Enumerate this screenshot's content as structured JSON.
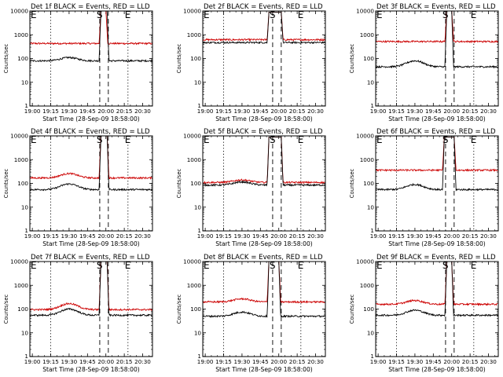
{
  "figure": {
    "background": "#ffffff",
    "colors": {
      "events": "#000000",
      "lld": "#cc0000"
    }
  },
  "chart_data": [
    {
      "type": "line",
      "title": "Det 1f BLACK = Events, RED = LLD",
      "xlabel": "Start Time (28-Sep-09 18:58:00)",
      "ylabel": "Counts/sec",
      "y_scale": "log",
      "ylim": [
        1,
        10000
      ],
      "y_ticks": [
        "1",
        "10",
        "100",
        "1000",
        "10000"
      ],
      "x_ticks": [
        "19:00",
        "19:15",
        "19:30",
        "19:45",
        "20:00",
        "20:15",
        "20:30"
      ],
      "xlim": [
        "18:58",
        "20:38"
      ],
      "markers": [
        {
          "label": "E",
          "x": "18:58",
          "style": "dotted"
        },
        {
          "label": "E",
          "x": "20:18",
          "style": "dotted"
        },
        {
          "label": "S",
          "x": "19:55",
          "style": "dashed"
        },
        {
          "label": "",
          "x": "20:02",
          "style": "dashed"
        }
      ],
      "series": [
        {
          "name": "LLD",
          "color": "#cc0000",
          "baseline": 430,
          "peak_start": "19:56",
          "peak_end": "20:00",
          "peak": 12000
        },
        {
          "name": "Events",
          "color": "#000000",
          "baseline": 80,
          "bump_center": "19:30",
          "bump": 110,
          "peak_start": "19:56",
          "peak_end": "20:01",
          "peak": 12000
        }
      ]
    },
    {
      "type": "line",
      "title": "Det 2f BLACK = Events, RED = LLD",
      "xlabel": "Start Time (28-Sep-09 18:58:00)",
      "ylabel": "Counts/sec",
      "y_scale": "log",
      "ylim": [
        1,
        10000
      ],
      "y_ticks": [
        "1",
        "10",
        "100",
        "1000",
        "10000"
      ],
      "x_ticks": [
        "19:00",
        "19:15",
        "19:30",
        "19:45",
        "20:00",
        "20:15",
        "20:30"
      ],
      "xlim": [
        "18:58",
        "20:38"
      ],
      "markers": [
        {
          "label": "E",
          "x": "18:58",
          "style": "dotted"
        },
        {
          "label": "E",
          "x": "20:18",
          "style": "dotted"
        },
        {
          "label": "S",
          "x": "19:55",
          "style": "dashed"
        },
        {
          "label": "",
          "x": "20:02",
          "style": "dashed"
        }
      ],
      "series": [
        {
          "name": "LLD",
          "color": "#cc0000",
          "baseline": 620,
          "peak_start": "19:52",
          "peak_end": "20:02",
          "peak": 9000
        },
        {
          "name": "Events",
          "color": "#000000",
          "baseline": 470,
          "peak_start": "19:52",
          "peak_end": "20:02",
          "peak": 9000
        }
      ]
    },
    {
      "type": "line",
      "title": "Det 3f BLACK = Events, RED = LLD",
      "xlabel": "Start Time (28-Sep-09 18:58:00)",
      "ylabel": "Counts/sec",
      "y_scale": "log",
      "ylim": [
        1,
        10000
      ],
      "y_ticks": [
        "1",
        "10",
        "100",
        "1000",
        "10000"
      ],
      "x_ticks": [
        "19:00",
        "19:15",
        "19:30",
        "19:45",
        "20:00",
        "20:15",
        "20:30"
      ],
      "xlim": [
        "18:58",
        "20:38"
      ],
      "markers": [
        {
          "label": "E",
          "x": "18:58",
          "style": "dotted"
        },
        {
          "label": "E",
          "x": "20:18",
          "style": "dotted"
        },
        {
          "label": "S",
          "x": "19:55",
          "style": "dashed"
        },
        {
          "label": "",
          "x": "20:02",
          "style": "dashed"
        }
      ],
      "series": [
        {
          "name": "LLD",
          "color": "#cc0000",
          "baseline": 520,
          "peak_start": "19:56",
          "peak_end": "20:00",
          "peak": 12000
        },
        {
          "name": "Events",
          "color": "#000000",
          "baseline": 45,
          "bump_center": "19:30",
          "bump": 80,
          "peak_start": "19:56",
          "peak_end": "20:00",
          "peak": 12000
        }
      ]
    },
    {
      "type": "line",
      "title": "Det 4f BLACK = Events, RED = LLD",
      "xlabel": "Start Time (28-Sep-09 18:58:00)",
      "ylabel": "Counts/sec",
      "y_scale": "log",
      "ylim": [
        1,
        10000
      ],
      "y_ticks": [
        "1",
        "10",
        "100",
        "1000",
        "10000"
      ],
      "x_ticks": [
        "19:00",
        "19:15",
        "19:30",
        "19:45",
        "20:00",
        "20:15",
        "20:30"
      ],
      "xlim": [
        "18:58",
        "20:38"
      ],
      "markers": [
        {
          "label": "E",
          "x": "18:58",
          "style": "dotted"
        },
        {
          "label": "E",
          "x": "20:18",
          "style": "dotted"
        },
        {
          "label": "S",
          "x": "19:55",
          "style": "dashed"
        },
        {
          "label": "",
          "x": "20:02",
          "style": "dashed"
        }
      ],
      "series": [
        {
          "name": "LLD",
          "color": "#cc0000",
          "baseline": 170,
          "bump_center": "19:30",
          "bump": 260,
          "peak_start": "19:56",
          "peak_end": "20:01",
          "peak": 12000
        },
        {
          "name": "Events",
          "color": "#000000",
          "baseline": 55,
          "bump_center": "19:30",
          "bump": 95,
          "peak_start": "19:56",
          "peak_end": "20:01",
          "peak": 12000
        }
      ]
    },
    {
      "type": "line",
      "title": "Det 5f BLACK = Events, RED = LLD",
      "xlabel": "Start Time (28-Sep-09 18:58:00)",
      "ylabel": "Counts/sec",
      "y_scale": "log",
      "ylim": [
        1,
        10000
      ],
      "y_ticks": [
        "1",
        "10",
        "100",
        "1000",
        "10000"
      ],
      "x_ticks": [
        "19:00",
        "19:15",
        "19:30",
        "19:45",
        "20:00",
        "20:15",
        "20:30"
      ],
      "xlim": [
        "18:58",
        "20:38"
      ],
      "markers": [
        {
          "label": "E",
          "x": "18:58",
          "style": "dotted"
        },
        {
          "label": "E",
          "x": "20:18",
          "style": "dotted"
        },
        {
          "label": "S",
          "x": "19:55",
          "style": "dashed"
        },
        {
          "label": "",
          "x": "20:02",
          "style": "dashed"
        }
      ],
      "series": [
        {
          "name": "LLD",
          "color": "#cc0000",
          "baseline": 110,
          "bump_center": "19:30",
          "bump": 140,
          "peak_start": "19:52",
          "peak_end": "20:02",
          "peak": 9000
        },
        {
          "name": "Events",
          "color": "#000000",
          "baseline": 85,
          "bump_center": "19:30",
          "bump": 115,
          "peak_start": "19:52",
          "peak_end": "20:02",
          "peak": 9000
        }
      ]
    },
    {
      "type": "line",
      "title": "Det 6f BLACK = Events, RED = LLD",
      "xlabel": "Start Time (28-Sep-09 18:58:00)",
      "ylabel": "Counts/sec",
      "y_scale": "log",
      "ylim": [
        1,
        10000
      ],
      "y_ticks": [
        "1",
        "10",
        "100",
        "1000",
        "10000"
      ],
      "x_ticks": [
        "19:00",
        "19:15",
        "19:30",
        "19:45",
        "20:00",
        "20:15",
        "20:30"
      ],
      "xlim": [
        "18:58",
        "20:38"
      ],
      "markers": [
        {
          "label": "E",
          "x": "18:58",
          "style": "dotted"
        },
        {
          "label": "E",
          "x": "20:18",
          "style": "dotted"
        },
        {
          "label": "S",
          "x": "19:55",
          "style": "dashed"
        },
        {
          "label": "",
          "x": "20:02",
          "style": "dashed"
        }
      ],
      "series": [
        {
          "name": "LLD",
          "color": "#cc0000",
          "baseline": 360,
          "peak_start": "19:54",
          "peak_end": "20:02",
          "peak": 9000
        },
        {
          "name": "Events",
          "color": "#000000",
          "baseline": 55,
          "bump_center": "19:30",
          "bump": 90,
          "peak_start": "19:54",
          "peak_end": "20:02",
          "peak": 9000
        }
      ]
    },
    {
      "type": "line",
      "title": "Det 7f BLACK = Events, RED = LLD",
      "xlabel": "Start Time (28-Sep-09 18:58:00)",
      "ylabel": "Counts/sec",
      "y_scale": "log",
      "ylim": [
        1,
        10000
      ],
      "y_ticks": [
        "1",
        "10",
        "100",
        "1000",
        "10000"
      ],
      "x_ticks": [
        "19:00",
        "19:15",
        "19:30",
        "19:45",
        "20:00",
        "20:15",
        "20:30"
      ],
      "xlim": [
        "18:58",
        "20:38"
      ],
      "markers": [
        {
          "label": "E",
          "x": "18:58",
          "style": "dotted"
        },
        {
          "label": "E",
          "x": "20:18",
          "style": "dotted"
        },
        {
          "label": "S",
          "x": "19:55",
          "style": "dashed"
        },
        {
          "label": "",
          "x": "20:02",
          "style": "dashed"
        }
      ],
      "series": [
        {
          "name": "LLD",
          "color": "#cc0000",
          "baseline": 95,
          "bump_center": "19:30",
          "bump": 170,
          "peak_start": "19:56",
          "peak_end": "20:01",
          "peak": 12000
        },
        {
          "name": "Events",
          "color": "#000000",
          "baseline": 55,
          "bump_center": "19:30",
          "bump": 100,
          "peak_start": "19:56",
          "peak_end": "20:01",
          "peak": 12000
        }
      ]
    },
    {
      "type": "line",
      "title": "Det 8f BLACK = Events, RED = LLD",
      "xlabel": "Start Time (28-Sep-09 18:58:00)",
      "ylabel": "Counts/sec",
      "y_scale": "log",
      "ylim": [
        1,
        10000
      ],
      "y_ticks": [
        "1",
        "10",
        "100",
        "1000",
        "10000"
      ],
      "x_ticks": [
        "19:00",
        "19:15",
        "19:30",
        "19:45",
        "20:00",
        "20:15",
        "20:30"
      ],
      "xlim": [
        "18:58",
        "20:38"
      ],
      "markers": [
        {
          "label": "E",
          "x": "18:58",
          "style": "dotted"
        },
        {
          "label": "E",
          "x": "20:18",
          "style": "dotted"
        },
        {
          "label": "S",
          "x": "19:55",
          "style": "dashed"
        },
        {
          "label": "",
          "x": "20:02",
          "style": "dashed"
        }
      ],
      "series": [
        {
          "name": "LLD",
          "color": "#cc0000",
          "baseline": 200,
          "bump_center": "19:30",
          "bump": 270,
          "peak_start": "19:52",
          "peak_end": "20:00",
          "peak": 12000
        },
        {
          "name": "Events",
          "color": "#000000",
          "baseline": 50,
          "bump_center": "19:30",
          "bump": 75,
          "peak_start": "19:52",
          "peak_end": "20:00",
          "peak": 12000
        }
      ]
    },
    {
      "type": "line",
      "title": "Det 9f BLACK = Events, RED = LLD",
      "xlabel": "Start Time (28-Sep-09 18:58:00)",
      "ylabel": "Counts/sec",
      "y_scale": "log",
      "ylim": [
        1,
        10000
      ],
      "y_ticks": [
        "1",
        "10",
        "100",
        "1000",
        "10000"
      ],
      "x_ticks": [
        "19:00",
        "19:15",
        "19:30",
        "19:45",
        "20:00",
        "20:15",
        "20:30"
      ],
      "xlim": [
        "18:58",
        "20:38"
      ],
      "markers": [
        {
          "label": "E",
          "x": "18:58",
          "style": "dotted"
        },
        {
          "label": "E",
          "x": "20:18",
          "style": "dotted"
        },
        {
          "label": "S",
          "x": "19:55",
          "style": "dashed"
        },
        {
          "label": "",
          "x": "20:02",
          "style": "dashed"
        }
      ],
      "series": [
        {
          "name": "LLD",
          "color": "#cc0000",
          "baseline": 160,
          "bump_center": "19:30",
          "bump": 230,
          "peak_start": "19:56",
          "peak_end": "20:00",
          "peak": 12000
        },
        {
          "name": "Events",
          "color": "#000000",
          "baseline": 55,
          "bump_center": "19:30",
          "bump": 90,
          "peak_start": "19:56",
          "peak_end": "20:00",
          "peak": 12000
        }
      ]
    }
  ]
}
